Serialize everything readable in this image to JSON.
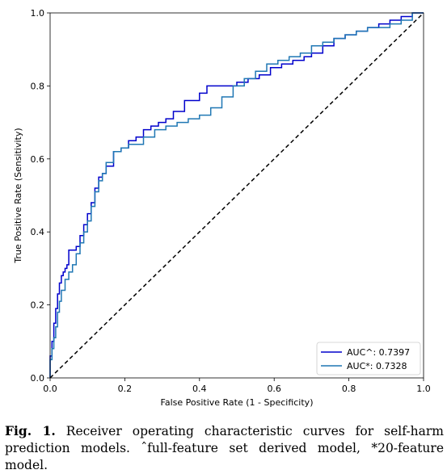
{
  "chart_data": {
    "type": "line",
    "xlabel": "False Positive Rate (1 - Specificity)",
    "ylabel": "True Positive Rate (Sensitivity)",
    "xlim": [
      0,
      1
    ],
    "ylim": [
      0,
      1
    ],
    "xticks": [
      "0.0",
      "0.2",
      "0.4",
      "0.6",
      "0.8",
      "1.0"
    ],
    "yticks": [
      "0.0",
      "0.2",
      "0.4",
      "0.6",
      "0.8",
      "1.0"
    ],
    "grid": false,
    "legend_position": "lower-right",
    "series": [
      {
        "name": "AUC^: 0.7397",
        "color": "#0000cc",
        "x": [
          0,
          0.005,
          0.01,
          0.015,
          0.02,
          0.025,
          0.03,
          0.035,
          0.04,
          0.045,
          0.05,
          0.06,
          0.07,
          0.08,
          0.09,
          0.1,
          0.11,
          0.12,
          0.13,
          0.14,
          0.15,
          0.17,
          0.19,
          0.21,
          0.23,
          0.25,
          0.27,
          0.29,
          0.31,
          0.33,
          0.36,
          0.4,
          0.42,
          0.44,
          0.47,
          0.5,
          0.53,
          0.56,
          0.59,
          0.62,
          0.65,
          0.68,
          0.7,
          0.73,
          0.76,
          0.79,
          0.82,
          0.85,
          0.88,
          0.91,
          0.94,
          0.97,
          1.0
        ],
        "y": [
          0,
          0.06,
          0.1,
          0.15,
          0.19,
          0.23,
          0.26,
          0.28,
          0.29,
          0.3,
          0.31,
          0.35,
          0.35,
          0.36,
          0.39,
          0.42,
          0.45,
          0.48,
          0.52,
          0.55,
          0.56,
          0.58,
          0.62,
          0.63,
          0.65,
          0.66,
          0.68,
          0.69,
          0.7,
          0.71,
          0.73,
          0.76,
          0.78,
          0.8,
          0.8,
          0.8,
          0.81,
          0.82,
          0.83,
          0.85,
          0.86,
          0.87,
          0.88,
          0.89,
          0.91,
          0.93,
          0.94,
          0.95,
          0.96,
          0.97,
          0.98,
          0.99,
          1.0
        ]
      },
      {
        "name": "AUC*:  0.7328",
        "color": "#1f77b4",
        "x": [
          0,
          0.005,
          0.01,
          0.015,
          0.02,
          0.025,
          0.03,
          0.04,
          0.05,
          0.06,
          0.07,
          0.08,
          0.09,
          0.1,
          0.11,
          0.12,
          0.13,
          0.14,
          0.15,
          0.17,
          0.19,
          0.21,
          0.23,
          0.25,
          0.28,
          0.31,
          0.34,
          0.37,
          0.4,
          0.43,
          0.46,
          0.49,
          0.52,
          0.55,
          0.58,
          0.61,
          0.64,
          0.67,
          0.7,
          0.73,
          0.76,
          0.79,
          0.82,
          0.85,
          0.88,
          0.91,
          0.94,
          0.97,
          1.0
        ],
        "y": [
          0,
          0.05,
          0.08,
          0.11,
          0.14,
          0.18,
          0.21,
          0.24,
          0.27,
          0.29,
          0.31,
          0.34,
          0.37,
          0.4,
          0.43,
          0.47,
          0.51,
          0.54,
          0.56,
          0.59,
          0.62,
          0.63,
          0.64,
          0.64,
          0.66,
          0.68,
          0.69,
          0.7,
          0.71,
          0.72,
          0.74,
          0.77,
          0.8,
          0.82,
          0.84,
          0.86,
          0.87,
          0.88,
          0.89,
          0.91,
          0.92,
          0.93,
          0.94,
          0.95,
          0.96,
          0.96,
          0.97,
          0.98,
          1.0
        ]
      }
    ],
    "reference_line": {
      "x": [
        0,
        1
      ],
      "y": [
        0,
        1
      ],
      "color": "#000000",
      "style": "dashed"
    }
  },
  "caption": {
    "label": "Fig. 1.",
    "text": " Receiver operating characteristic curves for self-harm prediction models. ˆfull-feature set derived model, *20-feature model."
  }
}
